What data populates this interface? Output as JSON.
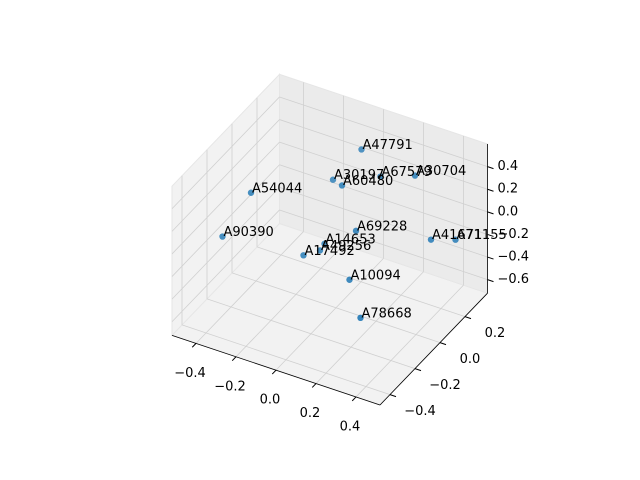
{
  "chart_data": {
    "type": "scatter3d",
    "color": "#1f77b4",
    "labels": [
      "A47791",
      "A30704",
      "A30197",
      "A67579",
      "A60480",
      "A54044",
      "A90390",
      "A69228",
      "A41671",
      "A71155",
      "A14653",
      "A49256",
      "A17492",
      "A10094",
      "A78668"
    ],
    "x": [
      -0.06,
      0.27,
      -0.14,
      0.16,
      0.03,
      -0.3,
      -0.38,
      0.1,
      0.35,
      0.41,
      -0.12,
      -0.08,
      -0.1,
      0.13,
      0.31
    ],
    "y": [
      0.3,
      0.2,
      0.2,
      0.1,
      0,
      -0.2,
      -0.3,
      0,
      0.2,
      0.3,
      0.1,
      0,
      -0.1,
      -0.1,
      -0.3
    ],
    "z": [
      0.3,
      0.38,
      0.1,
      0.42,
      0.38,
      0.35,
      0.03,
      0.02,
      -0.14,
      -0.22,
      -0.34,
      -0.26,
      -0.2,
      -0.28,
      -0.28
    ],
    "xlim": [
      -0.52,
      0.52
    ],
    "ylim": [
      -0.48,
      0.38
    ],
    "zlim": [
      -0.72,
      0.6
    ],
    "xticks": [
      {
        "value": -0.4,
        "label": "−0.4"
      },
      {
        "value": -0.2,
        "label": "−0.2"
      },
      {
        "value": 0,
        "label": "0.0"
      },
      0.2,
      0.4
    ],
    "yticks": [
      {
        "value": -0.4,
        "label": "−0.4"
      },
      {
        "value": -0.2,
        "label": "−0.2"
      },
      {
        "value": 0,
        "label": "0.0"
      },
      0.2
    ],
    "zticks": [
      {
        "value": -0.6,
        "label": "−0.6"
      },
      {
        "value": -0.4,
        "label": "−0.4"
      },
      {
        "value": -0.2,
        "label": "−0.2"
      },
      {
        "value": 0,
        "label": "0.0"
      },
      0.2,
      0.4
    ],
    "grid": true
  }
}
